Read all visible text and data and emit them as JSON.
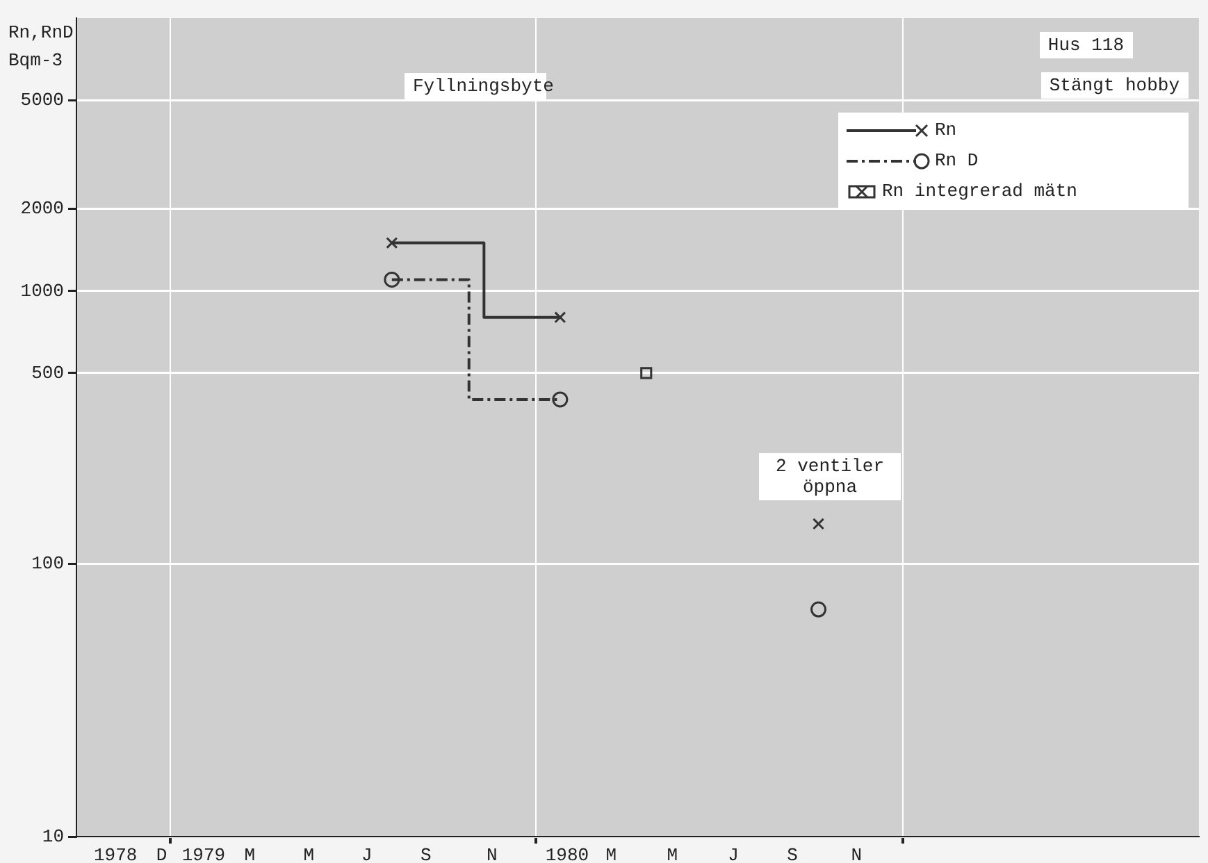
{
  "chart_data": {
    "type": "step",
    "title": "Hus 118",
    "subtitle": "Stängt hobby",
    "ylabel": "Rn,RnD Bqm-3",
    "log": true,
    "ylim": [
      10,
      10000
    ],
    "yticks": [
      10,
      100,
      500,
      1000,
      2000,
      5000
    ],
    "xlim": [
      "1978-09-29",
      "1981-10-24"
    ],
    "xticks": [
      {
        "value": "1978-11-07",
        "label": "1978"
      },
      {
        "value": "1978-12-23",
        "label": "D"
      },
      {
        "value": "1979-01-01",
        "label": null
      },
      {
        "value": "1979-02-03",
        "label": "1979"
      },
      {
        "value": "1979-03-21",
        "label": "M"
      },
      {
        "value": "1979-05-19",
        "label": "M"
      },
      {
        "value": "1979-07-16",
        "label": "J"
      },
      {
        "value": "1979-09-13",
        "label": "S"
      },
      {
        "value": "1979-11-18",
        "label": "N"
      },
      {
        "value": "1980-01-01",
        "label": null
      },
      {
        "value": "1980-02-01",
        "label": "1980"
      },
      {
        "value": "1980-03-16",
        "label": "M"
      },
      {
        "value": "1980-05-16",
        "label": "M"
      },
      {
        "value": "1980-07-16",
        "label": "J"
      },
      {
        "value": "1980-09-13",
        "label": "S"
      },
      {
        "value": "1980-11-16",
        "label": "N"
      },
      {
        "value": "1981-01-01",
        "label": null
      }
    ],
    "grid": true,
    "legend": "top right",
    "series": [
      {
        "name": "Rn",
        "color": "#333333",
        "marker": "cross",
        "line_style": "solid",
        "x": [
          "1979-08-10",
          "1979-11-10",
          "1980-01-25",
          "1980-06-01",
          "1980-10-09"
        ],
        "values": [
          1500,
          800,
          800,
          null,
          140
        ]
      },
      {
        "name": "Rn D",
        "color": "#333333",
        "marker": "circle",
        "line_style": "dashed",
        "x": [
          "1979-08-10",
          "1979-10-26",
          "1980-01-25",
          "1980-06-01",
          "1980-10-09"
        ],
        "values": [
          1100,
          400,
          400,
          null,
          68
        ]
      },
      {
        "name": "Rn integrerad mätn",
        "type": "scatter",
        "color": "#333333",
        "marker": "square",
        "x": [
          "1980-04-20"
        ],
        "values": [
          500
        ]
      }
    ],
    "annotations": [
      "Fyllningsbyte",
      "2 ventiler öppna"
    ]
  }
}
